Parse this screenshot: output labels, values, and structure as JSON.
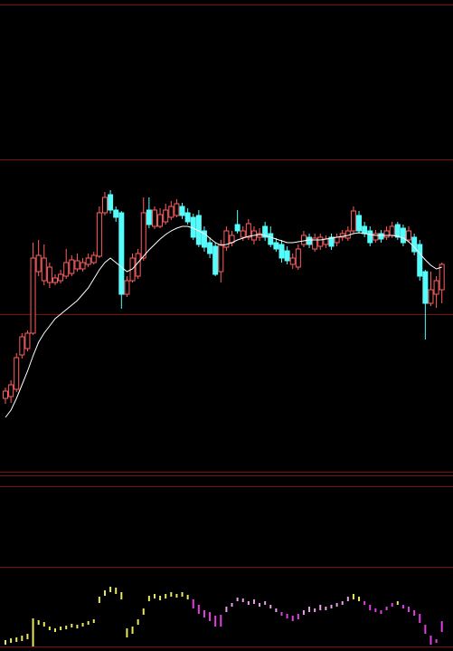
{
  "chart_data": [
    {
      "type": "candlestick",
      "up_color": "#ff5f5f",
      "down_color": "#54fcfc",
      "ma_color": "#ffffff",
      "ylim": [
        0,
        516
      ],
      "open": [
        81,
        83,
        91,
        129,
        136,
        153,
        221,
        211,
        209,
        209,
        211,
        216,
        219,
        224,
        224,
        229,
        231,
        238,
        286,
        306,
        289,
        286,
        196,
        211,
        216,
        236,
        289,
        271,
        271,
        276,
        281,
        283,
        293,
        286,
        281,
        283,
        266,
        253,
        249,
        221,
        248,
        253,
        273,
        259,
        259,
        256,
        259,
        271,
        263,
        253,
        251,
        244,
        229,
        226,
        251,
        259,
        246,
        249,
        251,
        259,
        253,
        259,
        258,
        266,
        283,
        271,
        266,
        256,
        263,
        259,
        261,
        273,
        269,
        256,
        259,
        251,
        221,
        186,
        196,
        201
      ],
      "high": [
        93,
        101,
        131,
        153,
        156,
        253,
        256,
        251,
        231,
        218,
        223,
        246,
        239,
        241,
        236,
        241,
        243,
        293,
        309,
        311,
        293,
        288,
        216,
        241,
        246,
        303,
        303,
        293,
        291,
        296,
        299,
        301,
        297,
        291,
        285,
        289,
        271,
        259,
        253,
        256,
        271,
        266,
        289,
        271,
        279,
        271,
        269,
        276,
        271,
        258,
        256,
        249,
        241,
        251,
        266,
        263,
        263,
        263,
        261,
        263,
        263,
        267,
        271,
        293,
        288,
        276,
        271,
        267,
        267,
        271,
        276,
        276,
        273,
        271,
        263,
        256,
        223,
        221,
        216,
        231
      ],
      "low": [
        75,
        76,
        88,
        125,
        133,
        151,
        216,
        206,
        203,
        206,
        208,
        213,
        216,
        221,
        221,
        226,
        229,
        236,
        283,
        285,
        276,
        180,
        193,
        209,
        213,
        233,
        269,
        268,
        269,
        273,
        278,
        281,
        279,
        273,
        256,
        248,
        243,
        236,
        216,
        209,
        244,
        249,
        263,
        255,
        256,
        251,
        255,
        255,
        248,
        243,
        231,
        229,
        224,
        223,
        248,
        247,
        243,
        245,
        247,
        245,
        249,
        255,
        255,
        263,
        263,
        259,
        249,
        253,
        253,
        256,
        258,
        256,
        249,
        253,
        239,
        211,
        146,
        183,
        181,
        186
      ],
      "close": [
        89,
        96,
        126,
        149,
        153,
        236,
        239,
        236,
        226,
        214,
        218,
        231,
        234,
        233,
        231,
        236,
        239,
        286,
        303,
        289,
        281,
        196,
        211,
        236,
        241,
        286,
        273,
        289,
        284,
        289,
        293,
        296,
        283,
        276,
        259,
        251,
        248,
        241,
        218,
        251,
        266,
        261,
        266,
        266,
        274,
        266,
        263,
        259,
        251,
        246,
        236,
        233,
        236,
        246,
        261,
        251,
        258,
        259,
        257,
        249,
        259,
        263,
        266,
        288,
        266,
        263,
        253,
        263,
        257,
        266,
        271,
        259,
        253,
        266,
        243,
        216,
        186,
        201,
        211,
        229
      ],
      "ma": [
        60,
        68,
        81,
        96,
        111,
        128,
        143,
        153,
        161,
        169,
        174,
        179,
        184,
        189,
        196,
        203,
        213,
        223,
        231,
        236,
        231,
        226,
        221,
        224,
        231,
        238,
        245,
        251,
        257,
        262,
        266,
        269,
        271,
        271,
        269,
        266,
        263,
        258,
        253,
        250,
        251,
        253,
        256,
        258,
        260,
        261,
        262,
        261,
        259,
        257,
        255,
        253,
        253,
        254,
        255,
        256,
        256,
        256,
        257,
        258,
        259,
        260,
        261,
        263,
        264,
        263,
        262,
        261,
        261,
        261,
        261,
        260,
        258,
        254,
        248,
        241,
        234,
        228,
        224,
        226
      ]
    },
    {
      "type": "range-bar",
      "ylim": [
        0,
        88
      ],
      "high": [
        7,
        9,
        10,
        12,
        14,
        31,
        29,
        27,
        22,
        20,
        22,
        23,
        25,
        24,
        26,
        28,
        30,
        55,
        62,
        66,
        65,
        60,
        20,
        22,
        30,
        42,
        56,
        58,
        56,
        58,
        60,
        58,
        60,
        57,
        52,
        46,
        40,
        38,
        34,
        35,
        44,
        48,
        54,
        53,
        50,
        52,
        48,
        50,
        46,
        42,
        38,
        36,
        34,
        36,
        40,
        44,
        42,
        46,
        44,
        46,
        48,
        50,
        55,
        58,
        55,
        50,
        46,
        42,
        40,
        44,
        48,
        50,
        46,
        44,
        40,
        36,
        24,
        12,
        8,
        28
      ],
      "low": [
        2,
        4,
        5,
        6,
        8,
        0,
        24,
        22,
        18,
        16,
        18,
        19,
        21,
        20,
        22,
        24,
        26,
        48,
        56,
        60,
        58,
        52,
        10,
        14,
        24,
        35,
        50,
        53,
        51,
        53,
        55,
        54,
        55,
        52,
        42,
        36,
        32,
        28,
        22,
        22,
        38,
        44,
        50,
        49,
        46,
        47,
        44,
        46,
        42,
        38,
        34,
        31,
        28,
        30,
        35,
        38,
        38,
        40,
        40,
        42,
        44,
        46,
        50,
        52,
        50,
        46,
        40,
        38,
        36,
        40,
        44,
        46,
        42,
        38,
        34,
        26,
        14,
        2,
        4,
        16
      ],
      "colors": [
        "#e8e860",
        "#e8e860",
        "#e8e860",
        "#e8e860",
        "#e8e860",
        "#e8e860",
        "#e8e860",
        "#e8e860",
        "#e8e860",
        "#e8e860",
        "#e8e860",
        "#e8e860",
        "#e8e860",
        "#e8e860",
        "#e8e860",
        "#e8e860",
        "#e8e860",
        "#e8e860",
        "#e8e860",
        "#e8e860",
        "#e8e860",
        "#e8e860",
        "#e8e860",
        "#e8e860",
        "#e8e860",
        "#e8e860",
        "#e8e860",
        "#e8e860",
        "#e8e860",
        "#e8e860",
        "#e8e860",
        "#e8e860",
        "#e8e860",
        "#e8e860",
        "#e040e0",
        "#e040e0",
        "#e040e0",
        "#e040e0",
        "#e040e0",
        "#e040e0",
        "#e8a0e8",
        "#e8a0e8",
        "#e8a0e8",
        "#e8a0e8",
        "#e8a0e8",
        "#e8a0e8",
        "#e8a0e8",
        "#e8a0e8",
        "#e8a0e8",
        "#e8a0e8",
        "#e040e0",
        "#e040e0",
        "#e040e0",
        "#e040e0",
        "#e8a0e8",
        "#e8a0e8",
        "#e8a0e8",
        "#e8a0e8",
        "#e8a0e8",
        "#e8a0e8",
        "#e8a0e8",
        "#e8a0e8",
        "#e8a0e8",
        "#e8e860",
        "#e8e860",
        "#e040e0",
        "#e040e0",
        "#e040e0",
        "#e040e0",
        "#e040e0",
        "#e040e0",
        "#e8e860",
        "#e040e0",
        "#e040e0",
        "#e040e0",
        "#e040e0",
        "#e040e0",
        "#e040e0",
        "#e040e0",
        "#e040e0"
      ]
    }
  ]
}
